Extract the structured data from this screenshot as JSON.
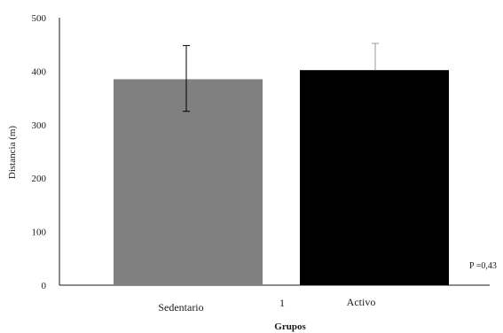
{
  "chart_data": {
    "type": "bar",
    "title": "",
    "xlabel": "Grupos",
    "ylabel": "Distancia (m)",
    "ylim": [
      0,
      500
    ],
    "yticks": [
      0,
      100,
      200,
      300,
      400,
      500
    ],
    "grid": false,
    "legend": "none",
    "series": [
      {
        "categories": [
          "Sedentario",
          "Activo"
        ],
        "values": [
          385,
          402
        ],
        "error_upper": [
          448,
          452
        ],
        "error_lower": [
          325,
          402
        ],
        "colors": [
          "#808080",
          "#000000"
        ]
      }
    ],
    "x_tick_text": "1",
    "annotation": "P =0,43"
  }
}
